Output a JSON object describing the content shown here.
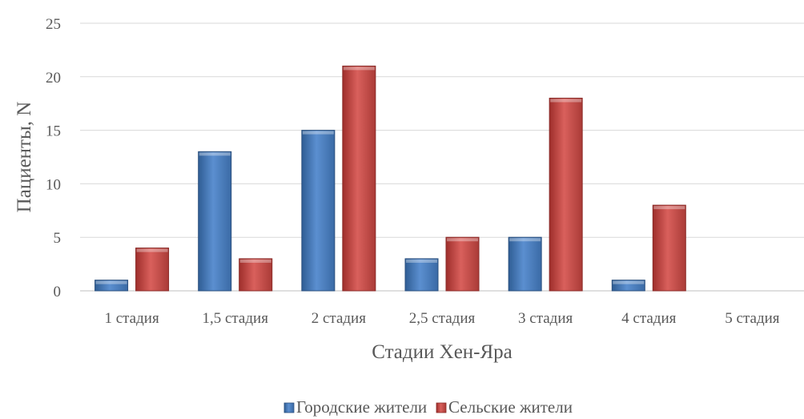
{
  "chart_data": {
    "type": "bar",
    "title": "",
    "xlabel": "Стадии Хен-Яра",
    "ylabel": "Пациенты, N",
    "ylim": [
      0,
      25
    ],
    "yticks": [
      0,
      5,
      10,
      15,
      20,
      25
    ],
    "grid": true,
    "legend_position": "bottom",
    "categories": [
      "1 стадия",
      "1,5 стадия",
      "2 стадия",
      "2,5 стадия",
      "3 стадия",
      "4 стадия",
      "5 стадия"
    ],
    "series": [
      {
        "name": "Городские жители",
        "color": "#4f81bd",
        "values": [
          1,
          13,
          15,
          3,
          5,
          1,
          0
        ]
      },
      {
        "name": "Сельские жители",
        "color": "#c0504d",
        "values": [
          4,
          3,
          21,
          5,
          18,
          8,
          0
        ]
      }
    ]
  }
}
